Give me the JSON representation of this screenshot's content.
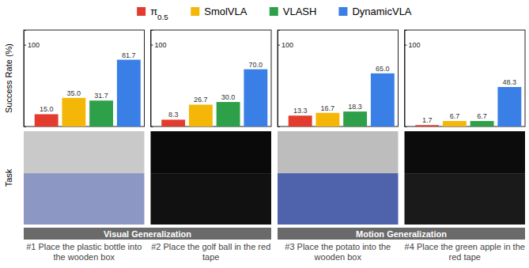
{
  "chart_data": {
    "type": "bar",
    "categories": [
      "#1 Place the plastic bottle into the wooden box",
      "#2 Place the golf ball in the red tape",
      "#3 Place the potato into the wooden box",
      "#4 Place the green apple in the red tape"
    ],
    "series": [
      {
        "name": "π0.5",
        "color": "#e33b2e",
        "values": [
          15.0,
          8.3,
          13.3,
          1.7
        ],
        "value_labels": [
          "15.0",
          "8.3",
          "13.3",
          "1.7"
        ]
      },
      {
        "name": "SmolVLA",
        "color": "#f4b708",
        "values": [
          35.0,
          26.7,
          16.7,
          6.7
        ],
        "value_labels": [
          "35.0",
          "26.7",
          "16.7",
          "6.7"
        ]
      },
      {
        "name": "VLASH",
        "color": "#2ea04a",
        "values": [
          31.7,
          30.0,
          18.3,
          6.7
        ],
        "value_labels": [
          "31.7",
          "30.0",
          "18.3",
          "6.7"
        ]
      },
      {
        "name": "DynamicVLA",
        "color": "#3a7fe6",
        "values": [
          81.7,
          70.0,
          65.0,
          48.3
        ],
        "value_labels": [
          "81.7",
          "70.0",
          "65.0",
          "48.3"
        ]
      }
    ],
    "ylabel": "Success Rate (%)",
    "ylim": [
      0,
      118
    ],
    "yticks": [
      100
    ],
    "data_labels": true,
    "legend": "top",
    "tick_labels": "y"
  },
  "figure": {
    "row_label": "Task",
    "groups": [
      "Visual Generalization",
      "Motion Generalization"
    ]
  }
}
